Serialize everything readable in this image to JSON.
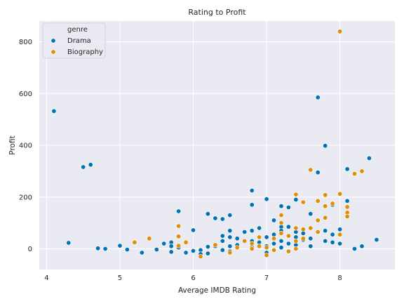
{
  "colors": {
    "background": "#ffffff",
    "plot_area": "#eaeaf2",
    "grid": "#ffffff",
    "drama": "#0173b2",
    "biography": "#de8f05",
    "marker_edge": "#ffffff"
  },
  "chart_data": {
    "type": "scatter",
    "title": "Rating to Profit",
    "xlabel": "Average IMDB Rating",
    "ylabel": "Profit",
    "xlim": [
      3.9,
      8.75
    ],
    "ylim": [
      -80,
      880
    ],
    "xticks": [
      4,
      5,
      6,
      7,
      8
    ],
    "yticks": [
      0,
      200,
      400,
      600,
      800
    ],
    "grid": true,
    "legend": {
      "title": "genre",
      "position": "top-left"
    },
    "series": [
      {
        "name": "Drama",
        "color": "#0173b2",
        "points": [
          [
            4.1,
            532
          ],
          [
            4.3,
            23
          ],
          [
            4.5,
            316
          ],
          [
            4.6,
            325
          ],
          [
            4.7,
            2
          ],
          [
            4.8,
            0
          ],
          [
            5.0,
            12
          ],
          [
            5.1,
            -3
          ],
          [
            5.3,
            -15
          ],
          [
            5.5,
            -3
          ],
          [
            5.6,
            20
          ],
          [
            5.7,
            25
          ],
          [
            5.7,
            10
          ],
          [
            5.7,
            -12
          ],
          [
            5.8,
            145
          ],
          [
            5.8,
            5
          ],
          [
            5.9,
            -15
          ],
          [
            6.0,
            72
          ],
          [
            6.0,
            -8
          ],
          [
            6.1,
            -5
          ],
          [
            6.1,
            -20
          ],
          [
            6.2,
            8
          ],
          [
            6.2,
            135
          ],
          [
            6.2,
            -18
          ],
          [
            6.3,
            118
          ],
          [
            6.3,
            10
          ],
          [
            6.4,
            115
          ],
          [
            6.4,
            50
          ],
          [
            6.4,
            30
          ],
          [
            6.4,
            -5
          ],
          [
            6.5,
            130
          ],
          [
            6.5,
            70
          ],
          [
            6.5,
            45
          ],
          [
            6.5,
            10
          ],
          [
            6.5,
            -10
          ],
          [
            6.6,
            40
          ],
          [
            6.6,
            15
          ],
          [
            6.7,
            65
          ],
          [
            6.8,
            225
          ],
          [
            6.8,
            170
          ],
          [
            6.8,
            70
          ],
          [
            6.8,
            30
          ],
          [
            6.8,
            5
          ],
          [
            6.9,
            80
          ],
          [
            6.9,
            25
          ],
          [
            7.0,
            192
          ],
          [
            7.0,
            45
          ],
          [
            7.0,
            10
          ],
          [
            7.0,
            -15
          ],
          [
            7.1,
            110
          ],
          [
            7.1,
            55
          ],
          [
            7.1,
            20
          ],
          [
            7.2,
            165
          ],
          [
            7.2,
            85
          ],
          [
            7.2,
            70
          ],
          [
            7.2,
            30
          ],
          [
            7.2,
            5
          ],
          [
            7.3,
            160
          ],
          [
            7.3,
            85
          ],
          [
            7.3,
            20
          ],
          [
            7.3,
            -10
          ],
          [
            7.4,
            190
          ],
          [
            7.4,
            65
          ],
          [
            7.4,
            45
          ],
          [
            7.4,
            15
          ],
          [
            7.5,
            60
          ],
          [
            7.5,
            35
          ],
          [
            7.6,
            135
          ],
          [
            7.6,
            40
          ],
          [
            7.6,
            10
          ],
          [
            7.7,
            585
          ],
          [
            7.7,
            295
          ],
          [
            7.8,
            398
          ],
          [
            7.8,
            70
          ],
          [
            7.8,
            30
          ],
          [
            7.9,
            170
          ],
          [
            7.9,
            55
          ],
          [
            7.9,
            25
          ],
          [
            8.0,
            75
          ],
          [
            8.0,
            20
          ],
          [
            8.1,
            308
          ],
          [
            8.1,
            185
          ],
          [
            8.2,
            0
          ],
          [
            8.3,
            10
          ],
          [
            8.4,
            350
          ],
          [
            8.5,
            35
          ]
        ]
      },
      {
        "name": "Biography",
        "color": "#de8f05",
        "points": [
          [
            5.2,
            25
          ],
          [
            5.4,
            40
          ],
          [
            5.8,
            88
          ],
          [
            5.8,
            48
          ],
          [
            5.8,
            12
          ],
          [
            5.9,
            25
          ],
          [
            6.1,
            -30
          ],
          [
            6.3,
            15
          ],
          [
            6.5,
            -15
          ],
          [
            6.6,
            5
          ],
          [
            6.7,
            30
          ],
          [
            6.8,
            20
          ],
          [
            6.8,
            0
          ],
          [
            6.9,
            45
          ],
          [
            6.9,
            10
          ],
          [
            7.0,
            -25
          ],
          [
            7.0,
            5
          ],
          [
            7.1,
            40
          ],
          [
            7.1,
            -5
          ],
          [
            7.2,
            130
          ],
          [
            7.2,
            100
          ],
          [
            7.2,
            60
          ],
          [
            7.3,
            50
          ],
          [
            7.3,
            -10
          ],
          [
            7.4,
            210
          ],
          [
            7.4,
            80
          ],
          [
            7.4,
            30
          ],
          [
            7.4,
            0
          ],
          [
            7.5,
            180
          ],
          [
            7.5,
            75
          ],
          [
            7.5,
            40
          ],
          [
            7.6,
            305
          ],
          [
            7.6,
            80
          ],
          [
            7.7,
            185
          ],
          [
            7.7,
            110
          ],
          [
            7.7,
            65
          ],
          [
            7.8,
            208
          ],
          [
            7.8,
            165
          ],
          [
            7.8,
            120
          ],
          [
            7.9,
            175
          ],
          [
            8.0,
            840
          ],
          [
            8.0,
            212
          ],
          [
            8.0,
            55
          ],
          [
            8.1,
            162
          ],
          [
            8.1,
            140
          ],
          [
            8.1,
            125
          ],
          [
            8.2,
            290
          ],
          [
            8.3,
            300
          ]
        ]
      }
    ]
  }
}
